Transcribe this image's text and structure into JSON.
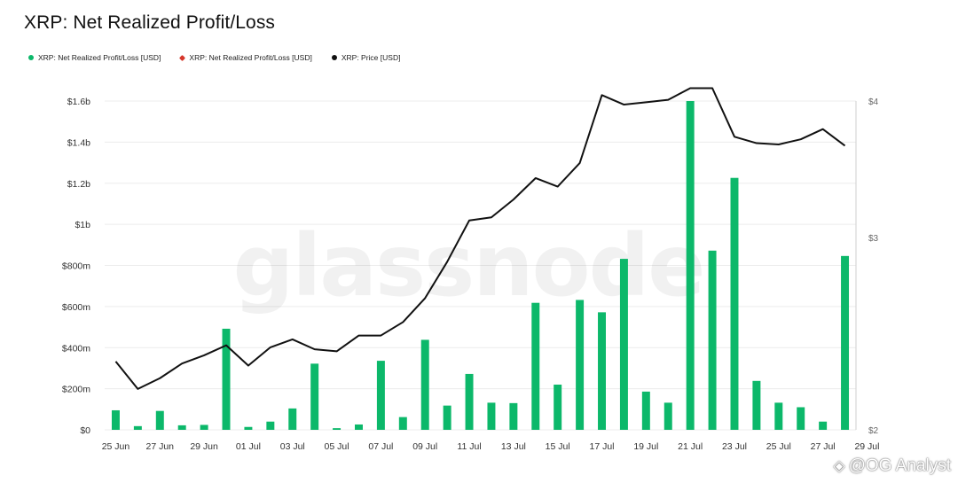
{
  "title": "XRP: Net Realized Profit/Loss",
  "legend": [
    {
      "label": "XRP: Net Realized Profit/Loss [USD]",
      "color": "#0cb86a",
      "shape": "circle"
    },
    {
      "label": "XRP: Net Realized Profit/Loss [USD]",
      "color": "#d6372b",
      "shape": "hexagon"
    },
    {
      "label": "XRP: Price [USD]",
      "color": "#111111",
      "shape": "circle"
    }
  ],
  "watermark": "glassnode",
  "source_tag": {
    "icon": "binance-square-icon",
    "text": "@OG Analyst"
  },
  "colors": {
    "profit": "#0cb86a",
    "loss": "#d6372b",
    "price": "#111111",
    "grid": "#ececec"
  },
  "chart_data": {
    "type": "bar",
    "title": "XRP: Net Realized Profit/Loss",
    "x": [
      "25 Jun",
      "26 Jun",
      "27 Jun",
      "28 Jun",
      "29 Jun",
      "30 Jun",
      "01 Jul",
      "02 Jul",
      "03 Jul",
      "04 Jul",
      "05 Jul",
      "06 Jul",
      "07 Jul",
      "08 Jul",
      "09 Jul",
      "10 Jul",
      "11 Jul",
      "12 Jul",
      "13 Jul",
      "14 Jul",
      "15 Jul",
      "16 Jul",
      "17 Jul",
      "18 Jul",
      "19 Jul",
      "20 Jul",
      "21 Jul",
      "22 Jul",
      "23 Jul",
      "24 Jul",
      "25 Jul",
      "26 Jul",
      "27 Jul",
      "28 Jul"
    ],
    "x_tick_labels": [
      "25 Jun",
      "27 Jun",
      "29 Jun",
      "01 Jul",
      "03 Jul",
      "05 Jul",
      "07 Jul",
      "09 Jul",
      "11 Jul",
      "13 Jul",
      "15 Jul",
      "17 Jul",
      "19 Jul",
      "21 Jul",
      "23 Jul",
      "25 Jul",
      "27 Jul",
      "29 Jul"
    ],
    "series": [
      {
        "name": "XRP: Net Realized Profit/Loss [USD]",
        "type": "bar",
        "axis": "left",
        "color": "#0cb86a",
        "values": [
          95000000,
          18000000,
          92000000,
          22000000,
          24000000,
          492000000,
          14000000,
          40000000,
          104000000,
          322000000,
          8000000,
          26000000,
          336000000,
          62000000,
          438000000,
          118000000,
          272000000,
          132000000,
          130000000,
          618000000,
          220000000,
          632000000,
          572000000,
          832000000,
          186000000,
          132000000,
          1600000000,
          872000000,
          1226000000,
          238000000,
          132000000,
          110000000,
          40000000,
          846000000
        ]
      },
      {
        "name": "XRP: Price [USD]",
        "type": "line",
        "axis": "right",
        "color": "#111111",
        "values": [
          2.31,
          2.18,
          2.23,
          2.3,
          2.34,
          2.39,
          2.29,
          2.38,
          2.42,
          2.37,
          2.36,
          2.44,
          2.44,
          2.51,
          2.64,
          2.85,
          3.11,
          3.13,
          3.25,
          3.4,
          3.34,
          3.51,
          4.05,
          3.97,
          3.99,
          4.01,
          4.11,
          4.11,
          3.71,
          3.66,
          3.65,
          3.69,
          3.77,
          3.64
        ]
      }
    ],
    "y_left": {
      "ticks": [
        "$0",
        "$200m",
        "$400m",
        "$600m",
        "$800m",
        "$1b",
        "$1.2b",
        "$1.4b",
        "$1.6b"
      ],
      "min": 0,
      "max": 1600000000
    },
    "y_right": {
      "ticks": [
        "$2",
        "$3",
        "$4"
      ],
      "min": 2,
      "max": 4,
      "scale": "log"
    },
    "grid": true,
    "legend_position": "top-left"
  }
}
